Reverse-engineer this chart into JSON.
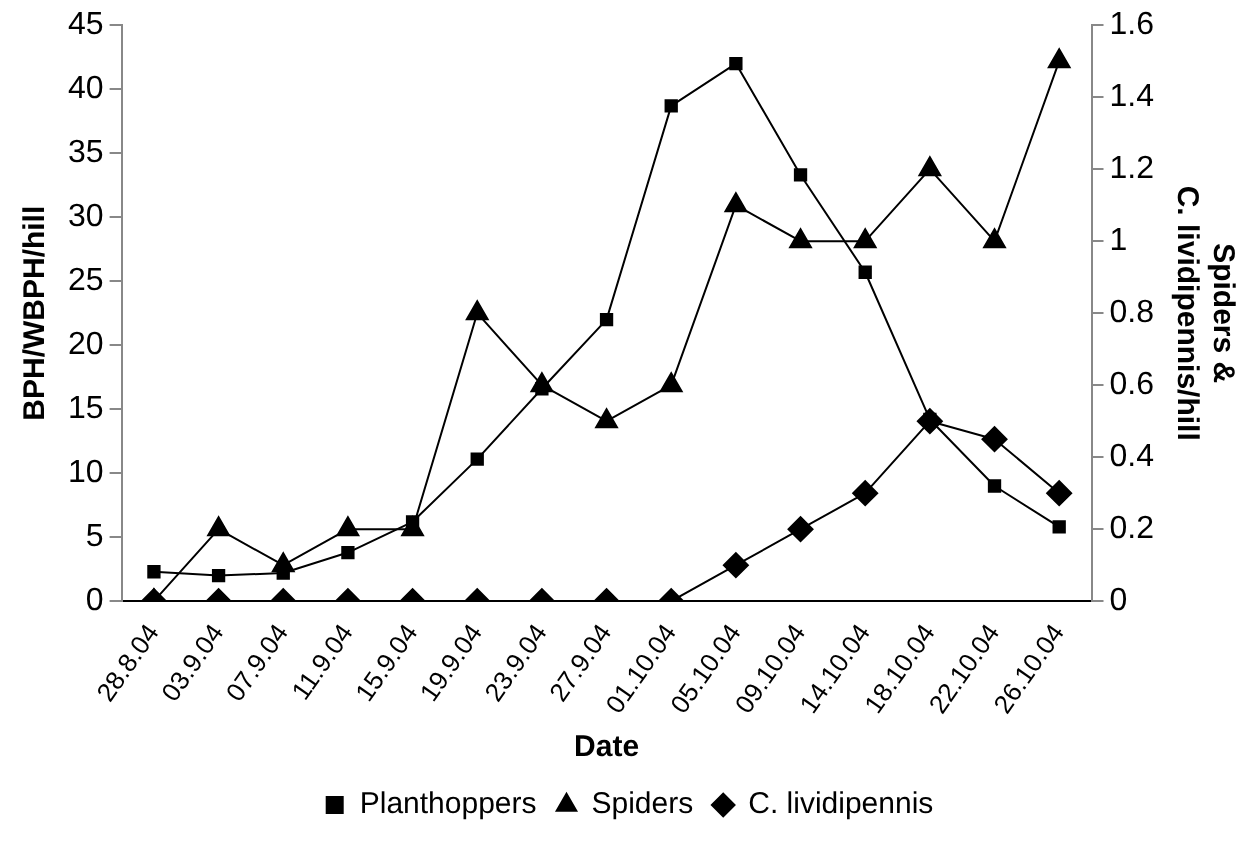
{
  "chart_data": {
    "type": "line",
    "xlabel": "Date",
    "ylabel": "BPH/WBPH/hill",
    "y2label": "Spiders &\nC. lividipennis/hill",
    "categories": [
      "28.8.04",
      "03.9.04",
      "07.9.04",
      "11.9.04",
      "15.9.04",
      "19.9.04",
      "23.9.04",
      "27.9.04",
      "01.10.04",
      "05.10.04",
      "09.10.04",
      "14.10.04",
      "18.10.04",
      "22.10.04",
      "26.10.04"
    ],
    "series": [
      {
        "name": "Planthoppers",
        "color": "#000000",
        "marker": "square",
        "values": [
          2.3,
          2.0,
          2.2,
          3.8,
          6.2,
          11.1,
          16.6,
          22,
          38.7,
          42,
          33.3,
          25.7,
          14.2,
          9,
          5.8
        ]
      },
      {
        "name": "Spiders",
        "color": "#000000",
        "marker": "triangle",
        "axis": "y2",
        "values": [
          0,
          0.2,
          0.1,
          0.2,
          0.2,
          0.8,
          0.6,
          0.5,
          0.6,
          1.1,
          1.0,
          1.0,
          1.2,
          1.0,
          1.5
        ]
      },
      {
        "name": "C. lividipennis",
        "color": "#000000",
        "marker": "diamond",
        "axis": "y2",
        "values": [
          0,
          0,
          0,
          0,
          0,
          0,
          0,
          0,
          0,
          0.1,
          0.2,
          0.3,
          0.5,
          0.45,
          0.3
        ]
      }
    ],
    "ylim": [
      0,
      45
    ],
    "yticks": [
      0,
      5,
      10,
      15,
      20,
      25,
      30,
      35,
      40,
      45
    ],
    "y2lim": [
      0,
      1.6
    ],
    "y2ticks": [
      0,
      0.2,
      0.4,
      0.6,
      0.8,
      1,
      1.2,
      1.4,
      1.6
    ],
    "grid": false,
    "legend": "bottom",
    "line_style": "solid"
  }
}
